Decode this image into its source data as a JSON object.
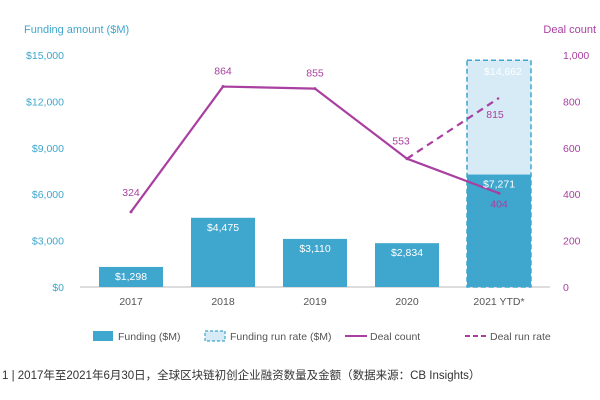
{
  "colors": {
    "funding": "#3fa6cd",
    "run_rate_fill": "#d6ebf5",
    "run_rate_border": "#3fa6cd",
    "deal": "#a93fa0",
    "left_axis": "#3fa6cd",
    "right_axis": "#a93fa0",
    "category": "#555555"
  },
  "chart_data": {
    "type": "bar",
    "title": "",
    "ylabel_left": "Funding amount ($M)",
    "ylabel_right": "Deal count",
    "xlabel": "",
    "categories": [
      "2017",
      "2018",
      "2019",
      "2020",
      "2021 YTD*"
    ],
    "ylim_left": [
      0,
      15000
    ],
    "ylim_right": [
      0,
      1000
    ],
    "left_ticks": [
      0,
      3000,
      6000,
      9000,
      12000,
      15000
    ],
    "left_tick_labels": [
      "$0",
      "$3,000",
      "$6,000",
      "$9,000",
      "$12,000",
      "$15,000"
    ],
    "right_ticks": [
      0,
      200,
      400,
      600,
      800,
      1000
    ],
    "right_tick_labels": [
      "0",
      "200",
      "400",
      "600",
      "800",
      "1,000"
    ],
    "series": [
      {
        "name": "Funding ($M)",
        "type": "bar",
        "axis": "left",
        "values": [
          1298,
          4475,
          3110,
          2834,
          7271
        ],
        "labels": [
          "$1,298",
          "$4,475",
          "$3,110",
          "$2,834",
          "$7,271"
        ]
      },
      {
        "name": "Funding run rate ($M)",
        "type": "bar-dashed",
        "axis": "left",
        "values": [
          null,
          null,
          null,
          null,
          14662
        ],
        "labels": [
          null,
          null,
          null,
          null,
          "$14,662"
        ]
      },
      {
        "name": "Deal count",
        "type": "line",
        "axis": "right",
        "values": [
          324,
          864,
          855,
          553,
          404
        ],
        "labels": [
          "324",
          "864",
          "855",
          "553",
          "404"
        ]
      },
      {
        "name": "Deal run rate",
        "type": "line-dashed",
        "axis": "right",
        "values": [
          null,
          null,
          null,
          553,
          815
        ],
        "labels": [
          null,
          null,
          null,
          null,
          "815"
        ]
      }
    ],
    "legend": [
      "Funding ($M)",
      "Funding run rate ($M)",
      "Deal count",
      "Deal run rate"
    ],
    "legend_position": "bottom"
  },
  "caption": "1 | 2017年至2021年6月30日，全球区块链初创企业融资数量及金额（数据来源：CB Insights）"
}
